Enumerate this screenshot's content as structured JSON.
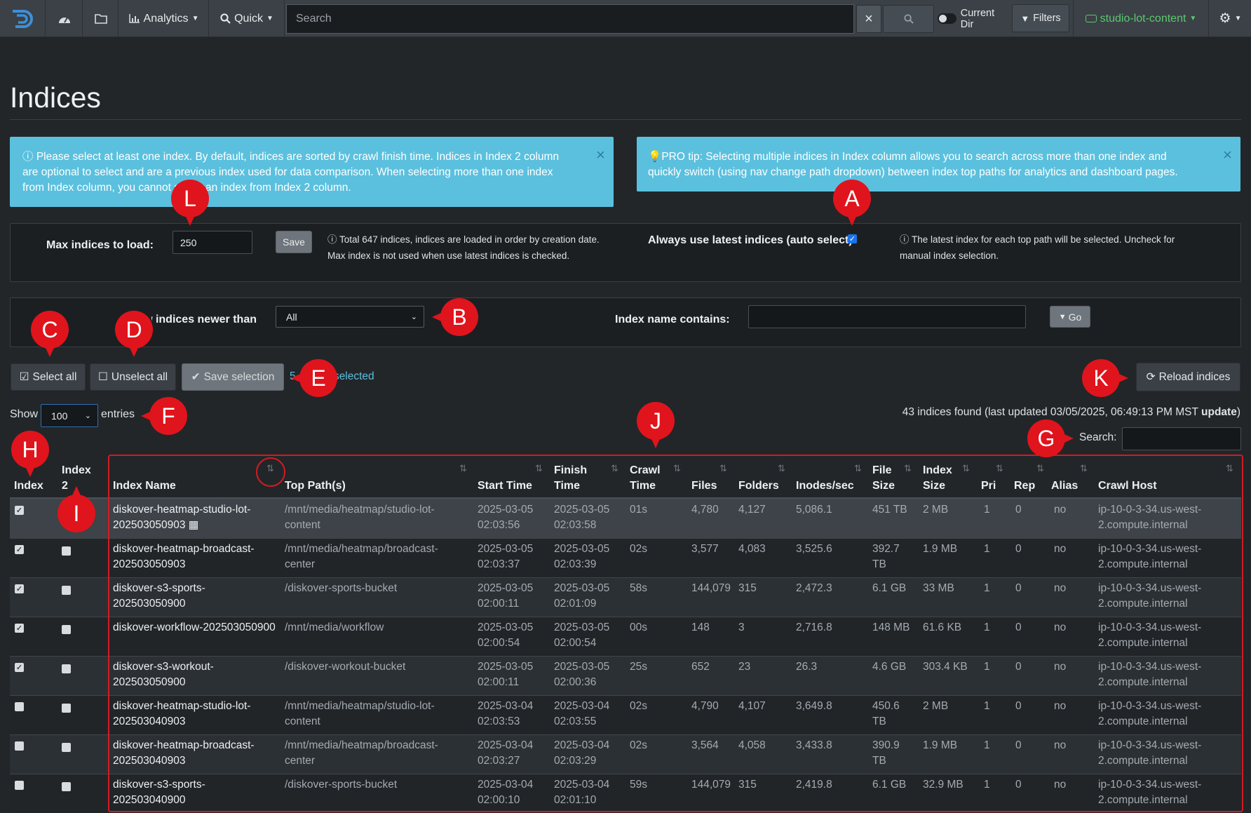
{
  "nav": {
    "analytics_label": "Analytics",
    "quick_label": "Quick",
    "search_placeholder": "Search",
    "clear_label": "×",
    "current_dir_label": "Current Dir",
    "filters_label": "Filters",
    "index_label": "studio-lot-content"
  },
  "page": {
    "title": "Indices"
  },
  "alerts": {
    "info_lines": [
      "Please select at least one index. By default, indices are sorted by crawl finish time. Indices in Index 2 column",
      "are optional to select and are a previous index used for data comparison. When selecting more than one index",
      "from Index column, you cannot select an index from Index 2 column."
    ],
    "tip_lines": [
      "PRO tip: Selecting multiple indices in Index column allows you to search across more than one index and",
      "quickly switch (using nav change path dropdown) between index top paths for analytics and dashboard pages."
    ],
    "close": "×"
  },
  "settings": {
    "max_label": "Max indices to load:",
    "max_value": "250",
    "save_label": "Save",
    "max_hint_1": "Total 647 indices, indices are loaded in order by creation date.",
    "max_hint_2": "Max index is not used when use latest indices is checked.",
    "latest_label": "Always use latest indices (auto select)",
    "latest_hint_1": "The latest index for each top path will be selected. Uncheck for",
    "latest_hint_2": "manual index selection."
  },
  "filters": {
    "newer_label": "Show indices newer than:",
    "newer_value": "All",
    "name_label": "Index name contains:",
    "name_value": "",
    "go_label": "Go"
  },
  "actions": {
    "select_all": "Select all",
    "unselect_all": "Unselect all",
    "save_selection": "Save selection",
    "selected_count": "5",
    "selected_label": "selected",
    "reload_label": "Reload indices"
  },
  "table_controls": {
    "show_label": "Show",
    "entries_value": "100",
    "entries_label": "entries",
    "found_text": "43 indices found (last updated 03/05/2025, 06:49:13 PM MST",
    "update_label": "update",
    "close_paren": ")",
    "search_label": "Search:"
  },
  "markers": {
    "A": "A",
    "B": "B",
    "C": "C",
    "D": "D",
    "E": "E",
    "F": "F",
    "G": "G",
    "H": "H",
    "I": "I",
    "J": "J",
    "K": "K",
    "L": "L"
  },
  "table": {
    "headers": {
      "index": "Index",
      "index2_a": "Index",
      "index2_b": "2",
      "name": "Index Name",
      "top_path": "Top Path(s)",
      "start": "Start Time",
      "finish_a": "Finish",
      "finish_b": "Time",
      "crawl_a": "Crawl",
      "crawl_b": "Time",
      "files": "Files",
      "folders": "Folders",
      "inodes": "Inodes/sec",
      "fsize_a": "File",
      "fsize_b": "Size",
      "isize_a": "Index",
      "isize_b": "Size",
      "pri": "Pri",
      "rep": "Rep",
      "alias": "Alias",
      "host": "Crawl Host"
    },
    "rows": [
      {
        "name1": "diskover-heatmap-studio-lot-",
        "name2": "202503050903",
        "path1": "/mnt/media/heatmap/studio-lot-",
        "path2": "content",
        "start1": "2025-03-05",
        "start2": "02:03:56",
        "fin1": "2025-03-05",
        "fin2": "02:03:58",
        "crawl": "01s",
        "files": "4,780",
        "folders": "4,127",
        "inodes": "5,086.1",
        "fs1": "451 TB",
        "fs2": "",
        "isize": "2 MB",
        "pri": "1",
        "rep": "0",
        "alias": "no",
        "host1": "ip-10-0-3-34.us-west-",
        "host2": "2.compute.internal",
        "checked": true
      },
      {
        "name1": "diskover-heatmap-broadcast-",
        "name2": "202503050903",
        "path1": "/mnt/media/heatmap/broadcast-",
        "path2": "center",
        "start1": "2025-03-05",
        "start2": "02:03:37",
        "fin1": "2025-03-05",
        "fin2": "02:03:39",
        "crawl": "02s",
        "files": "3,577",
        "folders": "4,083",
        "inodes": "3,525.6",
        "fs1": "392.7",
        "fs2": "TB",
        "isize": "1.9 MB",
        "pri": "1",
        "rep": "0",
        "alias": "no",
        "host1": "ip-10-0-3-34.us-west-",
        "host2": "2.compute.internal",
        "checked": true
      },
      {
        "name1": "diskover-s3-sports-",
        "name2": "202503050900",
        "path1": "/diskover-sports-bucket",
        "path2": "",
        "start1": "2025-03-05",
        "start2": "02:00:11",
        "fin1": "2025-03-05",
        "fin2": "02:01:09",
        "crawl": "58s",
        "files": "144,079",
        "folders": "315",
        "inodes": "2,472.3",
        "fs1": "6.1 GB",
        "fs2": "",
        "isize": "33 MB",
        "pri": "1",
        "rep": "0",
        "alias": "no",
        "host1": "ip-10-0-3-34.us-west-",
        "host2": "2.compute.internal",
        "checked": true
      },
      {
        "name1": "diskover-workflow-202503050900",
        "name2": "",
        "path1": "/mnt/media/workflow",
        "path2": "",
        "start1": "2025-03-05",
        "start2": "02:00:54",
        "fin1": "2025-03-05",
        "fin2": "02:00:54",
        "crawl": "00s",
        "files": "148",
        "folders": "3",
        "inodes": "2,716.8",
        "fs1": "148 MB",
        "fs2": "",
        "isize": "61.6 KB",
        "pri": "1",
        "rep": "0",
        "alias": "no",
        "host1": "ip-10-0-3-34.us-west-",
        "host2": "2.compute.internal",
        "checked": true
      },
      {
        "name1": "diskover-s3-workout-",
        "name2": "202503050900",
        "path1": "/diskover-workout-bucket",
        "path2": "",
        "start1": "2025-03-05",
        "start2": "02:00:11",
        "fin1": "2025-03-05",
        "fin2": "02:00:36",
        "crawl": "25s",
        "files": "652",
        "folders": "23",
        "inodes": "26.3",
        "fs1": "4.6 GB",
        "fs2": "",
        "isize": "303.4 KB",
        "pri": "1",
        "rep": "0",
        "alias": "no",
        "host1": "ip-10-0-3-34.us-west-",
        "host2": "2.compute.internal",
        "checked": true
      },
      {
        "name1": "diskover-heatmap-studio-lot-",
        "name2": "202503040903",
        "path1": "/mnt/media/heatmap/studio-lot-",
        "path2": "content",
        "start1": "2025-03-04",
        "start2": "02:03:53",
        "fin1": "2025-03-04",
        "fin2": "02:03:55",
        "crawl": "02s",
        "files": "4,790",
        "folders": "4,107",
        "inodes": "3,649.8",
        "fs1": "450.6",
        "fs2": "TB",
        "isize": "2 MB",
        "pri": "1",
        "rep": "0",
        "alias": "no",
        "host1": "ip-10-0-3-34.us-west-",
        "host2": "2.compute.internal",
        "checked": false
      },
      {
        "name1": "diskover-heatmap-broadcast-",
        "name2": "202503040903",
        "path1": "/mnt/media/heatmap/broadcast-",
        "path2": "center",
        "start1": "2025-03-04",
        "start2": "02:03:27",
        "fin1": "2025-03-04",
        "fin2": "02:03:29",
        "crawl": "02s",
        "files": "3,564",
        "folders": "4,058",
        "inodes": "3,433.8",
        "fs1": "390.9",
        "fs2": "TB",
        "isize": "1.9 MB",
        "pri": "1",
        "rep": "0",
        "alias": "no",
        "host1": "ip-10-0-3-34.us-west-",
        "host2": "2.compute.internal",
        "checked": false
      },
      {
        "name1": "diskover-s3-sports-",
        "name2": "202503040900",
        "path1": "/diskover-sports-bucket",
        "path2": "",
        "start1": "2025-03-04",
        "start2": "02:00:10",
        "fin1": "2025-03-04",
        "fin2": "02:01:10",
        "crawl": "59s",
        "files": "144,079",
        "folders": "315",
        "inodes": "2,419.8",
        "fs1": "6.1 GB",
        "fs2": "",
        "isize": "32.9 MB",
        "pri": "1",
        "rep": "0",
        "alias": "no",
        "host1": "ip-10-0-3-34.us-west-",
        "host2": "2.compute.internal",
        "checked": false
      }
    ]
  }
}
